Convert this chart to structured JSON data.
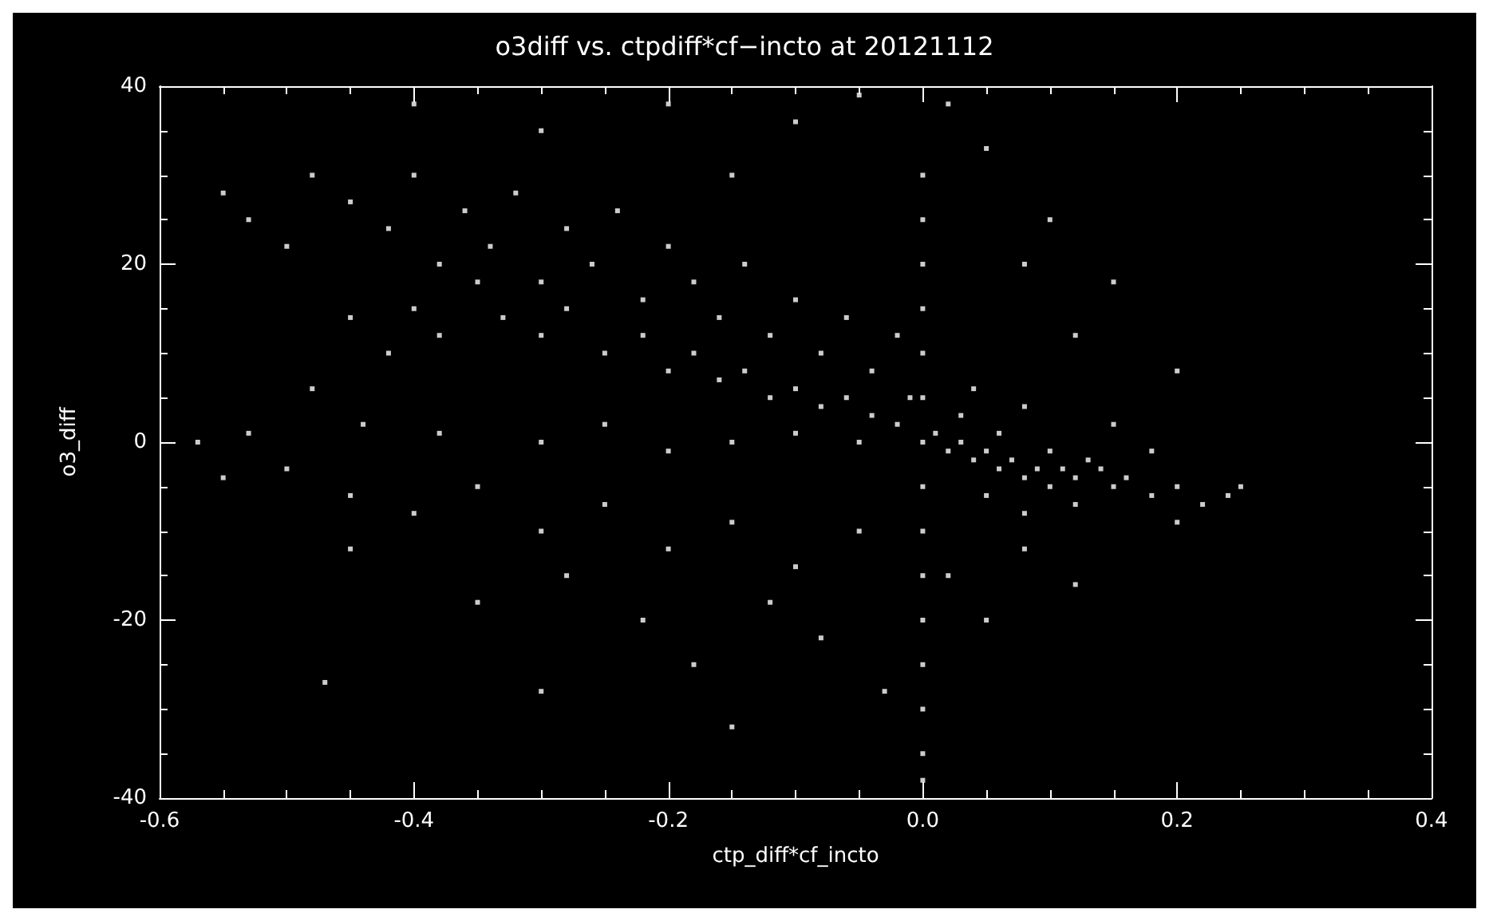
{
  "chart_data": {
    "type": "scatter",
    "title": "o3diff vs. ctpdiff*cf−incto at 20121112",
    "xlabel": "ctp_diff*cf_incto",
    "ylabel": "o3_diff",
    "xlim": [
      -0.6,
      0.4
    ],
    "xticks": [
      -0.6,
      -0.4,
      -0.2,
      {
        "value": 0,
        "label": "0.0"
      },
      0.2,
      0.4
    ],
    "ylim": [
      -40,
      40
    ],
    "yticks": [
      -40,
      -20,
      0,
      20,
      40
    ],
    "grid": false,
    "marker": "square",
    "series": [
      {
        "color": "#ffffff",
        "x": [
          -0.55,
          -0.53,
          -0.5,
          -0.48,
          -0.45,
          -0.42,
          -0.4,
          -0.38,
          -0.36,
          -0.34,
          -0.32,
          -0.3,
          -0.28,
          -0.26,
          -0.24,
          -0.22,
          -0.2,
          -0.18,
          -0.16,
          -0.14,
          -0.12,
          -0.1,
          -0.08,
          -0.06,
          -0.04,
          -0.02,
          -0.01,
          -0.4,
          -0.38,
          -0.35,
          -0.33,
          -0.3,
          -0.28,
          -0.25,
          -0.22,
          -0.2,
          -0.18,
          -0.16,
          -0.14,
          -0.12,
          -0.1,
          -0.08,
          -0.06,
          -0.04,
          -0.02,
          -0.42,
          -0.45,
          -0.48,
          -0.44,
          -0.38,
          -0.3,
          -0.25,
          -0.2,
          -0.15,
          -0.1,
          -0.05,
          0.01,
          0.02,
          0.03,
          0.04,
          0.05,
          0.06,
          0.07,
          0.08,
          0.09,
          0.1,
          0.11,
          0.12,
          0.13,
          0.14,
          0.15,
          0.16,
          0.18,
          0.2,
          0.22,
          0.24,
          0.25,
          0.05,
          0.08,
          0.12,
          0.03,
          0.06,
          0.1,
          0.04,
          0.08,
          0.15,
          0.18,
          0.2,
          0,
          0,
          0,
          0,
          0,
          0,
          0,
          0,
          0,
          0,
          0,
          0,
          0,
          0,
          0,
          -0.5,
          -0.45,
          -0.4,
          -0.35,
          -0.3,
          -0.28,
          -0.25,
          -0.22,
          -0.2,
          -0.18,
          -0.15,
          -0.12,
          -0.1,
          -0.08,
          -0.05,
          -0.03,
          0.02,
          0.05,
          0.08,
          0.12,
          -0.35,
          -0.45,
          -0.3,
          -0.47,
          -0.15,
          -0.4,
          -0.3,
          -0.2,
          -0.1,
          -0.05,
          0.02,
          0.05,
          0.1,
          0.15,
          0.12,
          0.2,
          -0.15,
          0.08,
          -0.57,
          -0.53,
          -0.55
        ],
        "values": [
          28,
          25,
          22,
          30,
          27,
          24,
          30,
          20,
          26,
          22,
          28,
          18,
          24,
          20,
          26,
          16,
          22,
          18,
          14,
          20,
          12,
          16,
          10,
          14,
          8,
          12,
          5,
          15,
          12,
          18,
          14,
          12,
          15,
          10,
          12,
          8,
          10,
          7,
          8,
          5,
          6,
          4,
          5,
          3,
          2,
          10,
          14,
          6,
          2,
          1,
          0,
          2,
          -1,
          0,
          1,
          0,
          1,
          -1,
          0,
          -2,
          -1,
          -3,
          -2,
          -4,
          -3,
          -5,
          -3,
          -4,
          -2,
          -3,
          -5,
          -4,
          -6,
          -5,
          -7,
          -6,
          -5,
          -6,
          -8,
          -7,
          3,
          1,
          -1,
          6,
          4,
          2,
          -1,
          -9,
          30,
          25,
          20,
          15,
          10,
          5,
          0,
          -5,
          -10,
          -15,
          -20,
          -25,
          -30,
          -35,
          -38,
          -3,
          -6,
          -8,
          -5,
          -10,
          -15,
          -7,
          -20,
          -12,
          -25,
          -9,
          -18,
          -14,
          -22,
          -10,
          -28,
          -15,
          -20,
          -12,
          -16,
          -18,
          -12,
          -28,
          -27,
          -32,
          38,
          35,
          38,
          36,
          39,
          38,
          33,
          25,
          18,
          12,
          8,
          30,
          20,
          0,
          1,
          -4
        ]
      }
    ]
  }
}
